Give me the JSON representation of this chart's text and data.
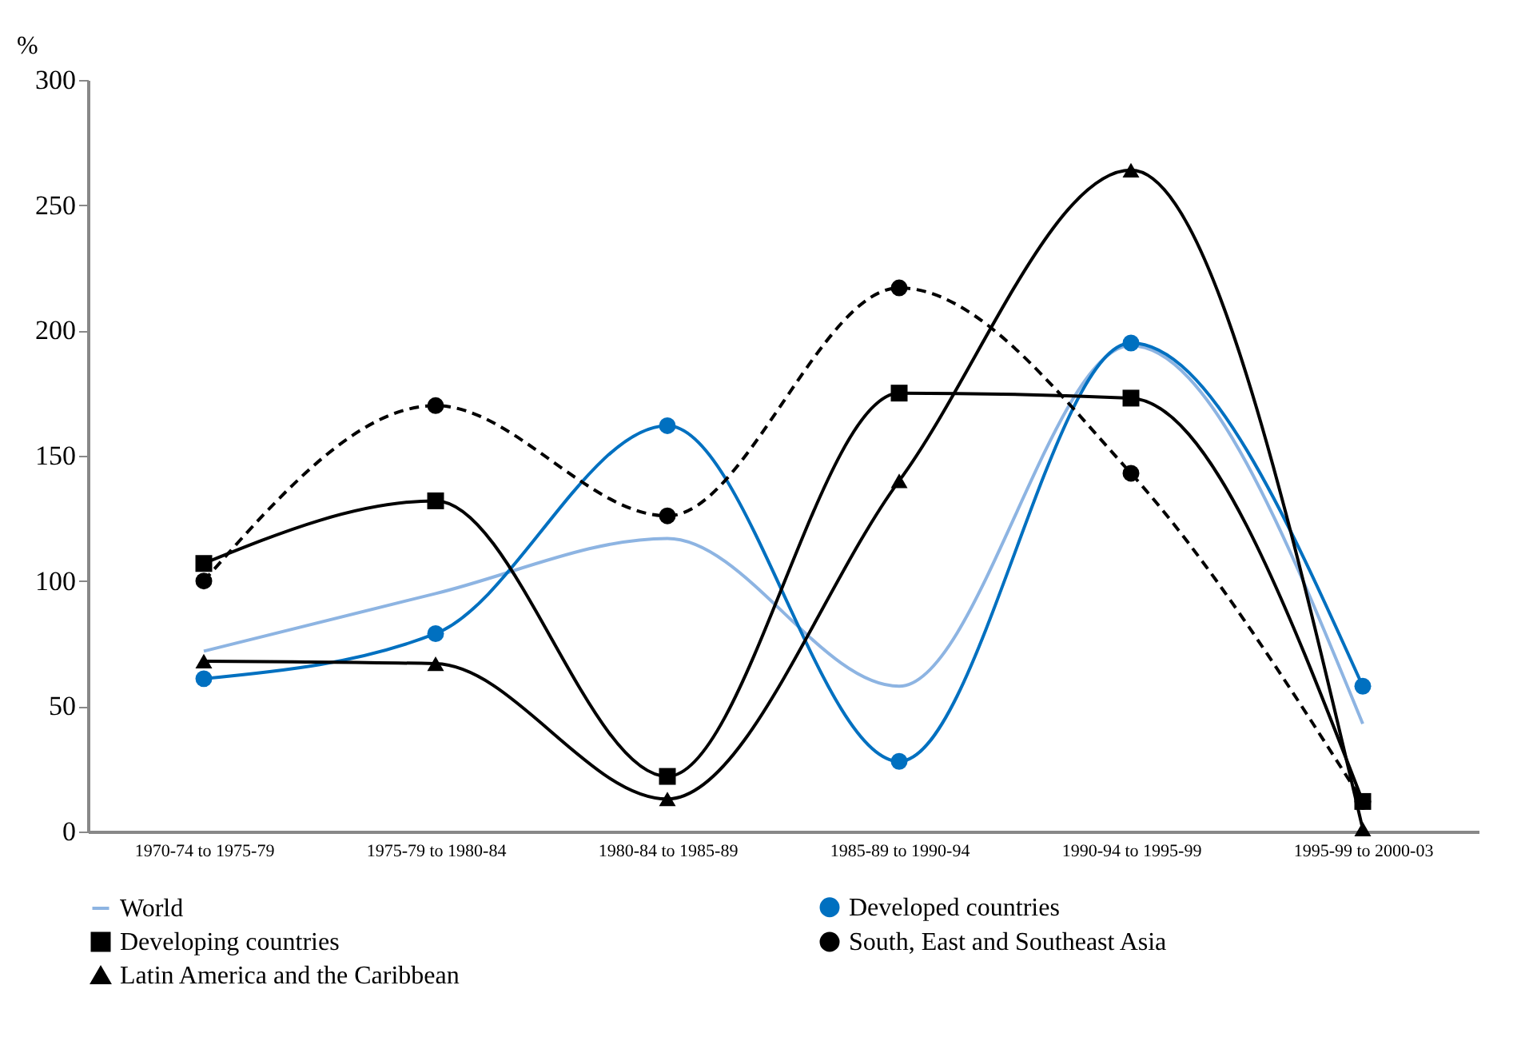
{
  "chart_data": {
    "type": "line",
    "ylabel": "%",
    "categories": [
      "1970-74 to 1975-79",
      "1975-79 to 1980-84",
      "1980-84 to 1985-89",
      "1985-89 to 1990-94",
      "1990-94 to 1995-99",
      "1995-99 to 2000-03"
    ],
    "series": [
      {
        "name": "World",
        "color": "#8db4e2",
        "marker": "none",
        "line_style": "solid",
        "values": [
          72,
          95,
          117,
          58,
          194,
          43
        ]
      },
      {
        "name": "Developed countries",
        "color": "#0070c0",
        "marker": "circle",
        "line_style": "solid",
        "values": [
          61,
          79,
          162,
          28,
          195,
          58
        ]
      },
      {
        "name": "Developing countries",
        "color": "#000000",
        "marker": "square",
        "line_style": "solid",
        "values": [
          107,
          132,
          22,
          175,
          173,
          12
        ]
      },
      {
        "name": "South, East and Southeast Asia",
        "color": "#000000",
        "marker": "circle",
        "line_style": "dashed",
        "values": [
          100,
          170,
          126,
          217,
          143,
          12
        ]
      },
      {
        "name": "Latin America and the Caribbean",
        "color": "#000000",
        "marker": "triangle",
        "line_style": "solid",
        "values": [
          68,
          67,
          13,
          140,
          264,
          1
        ]
      }
    ],
    "ylim": [
      0,
      300
    ],
    "yticks": [
      0,
      50,
      100,
      150,
      200,
      250,
      300
    ],
    "grid": false,
    "legend": "bottom"
  }
}
